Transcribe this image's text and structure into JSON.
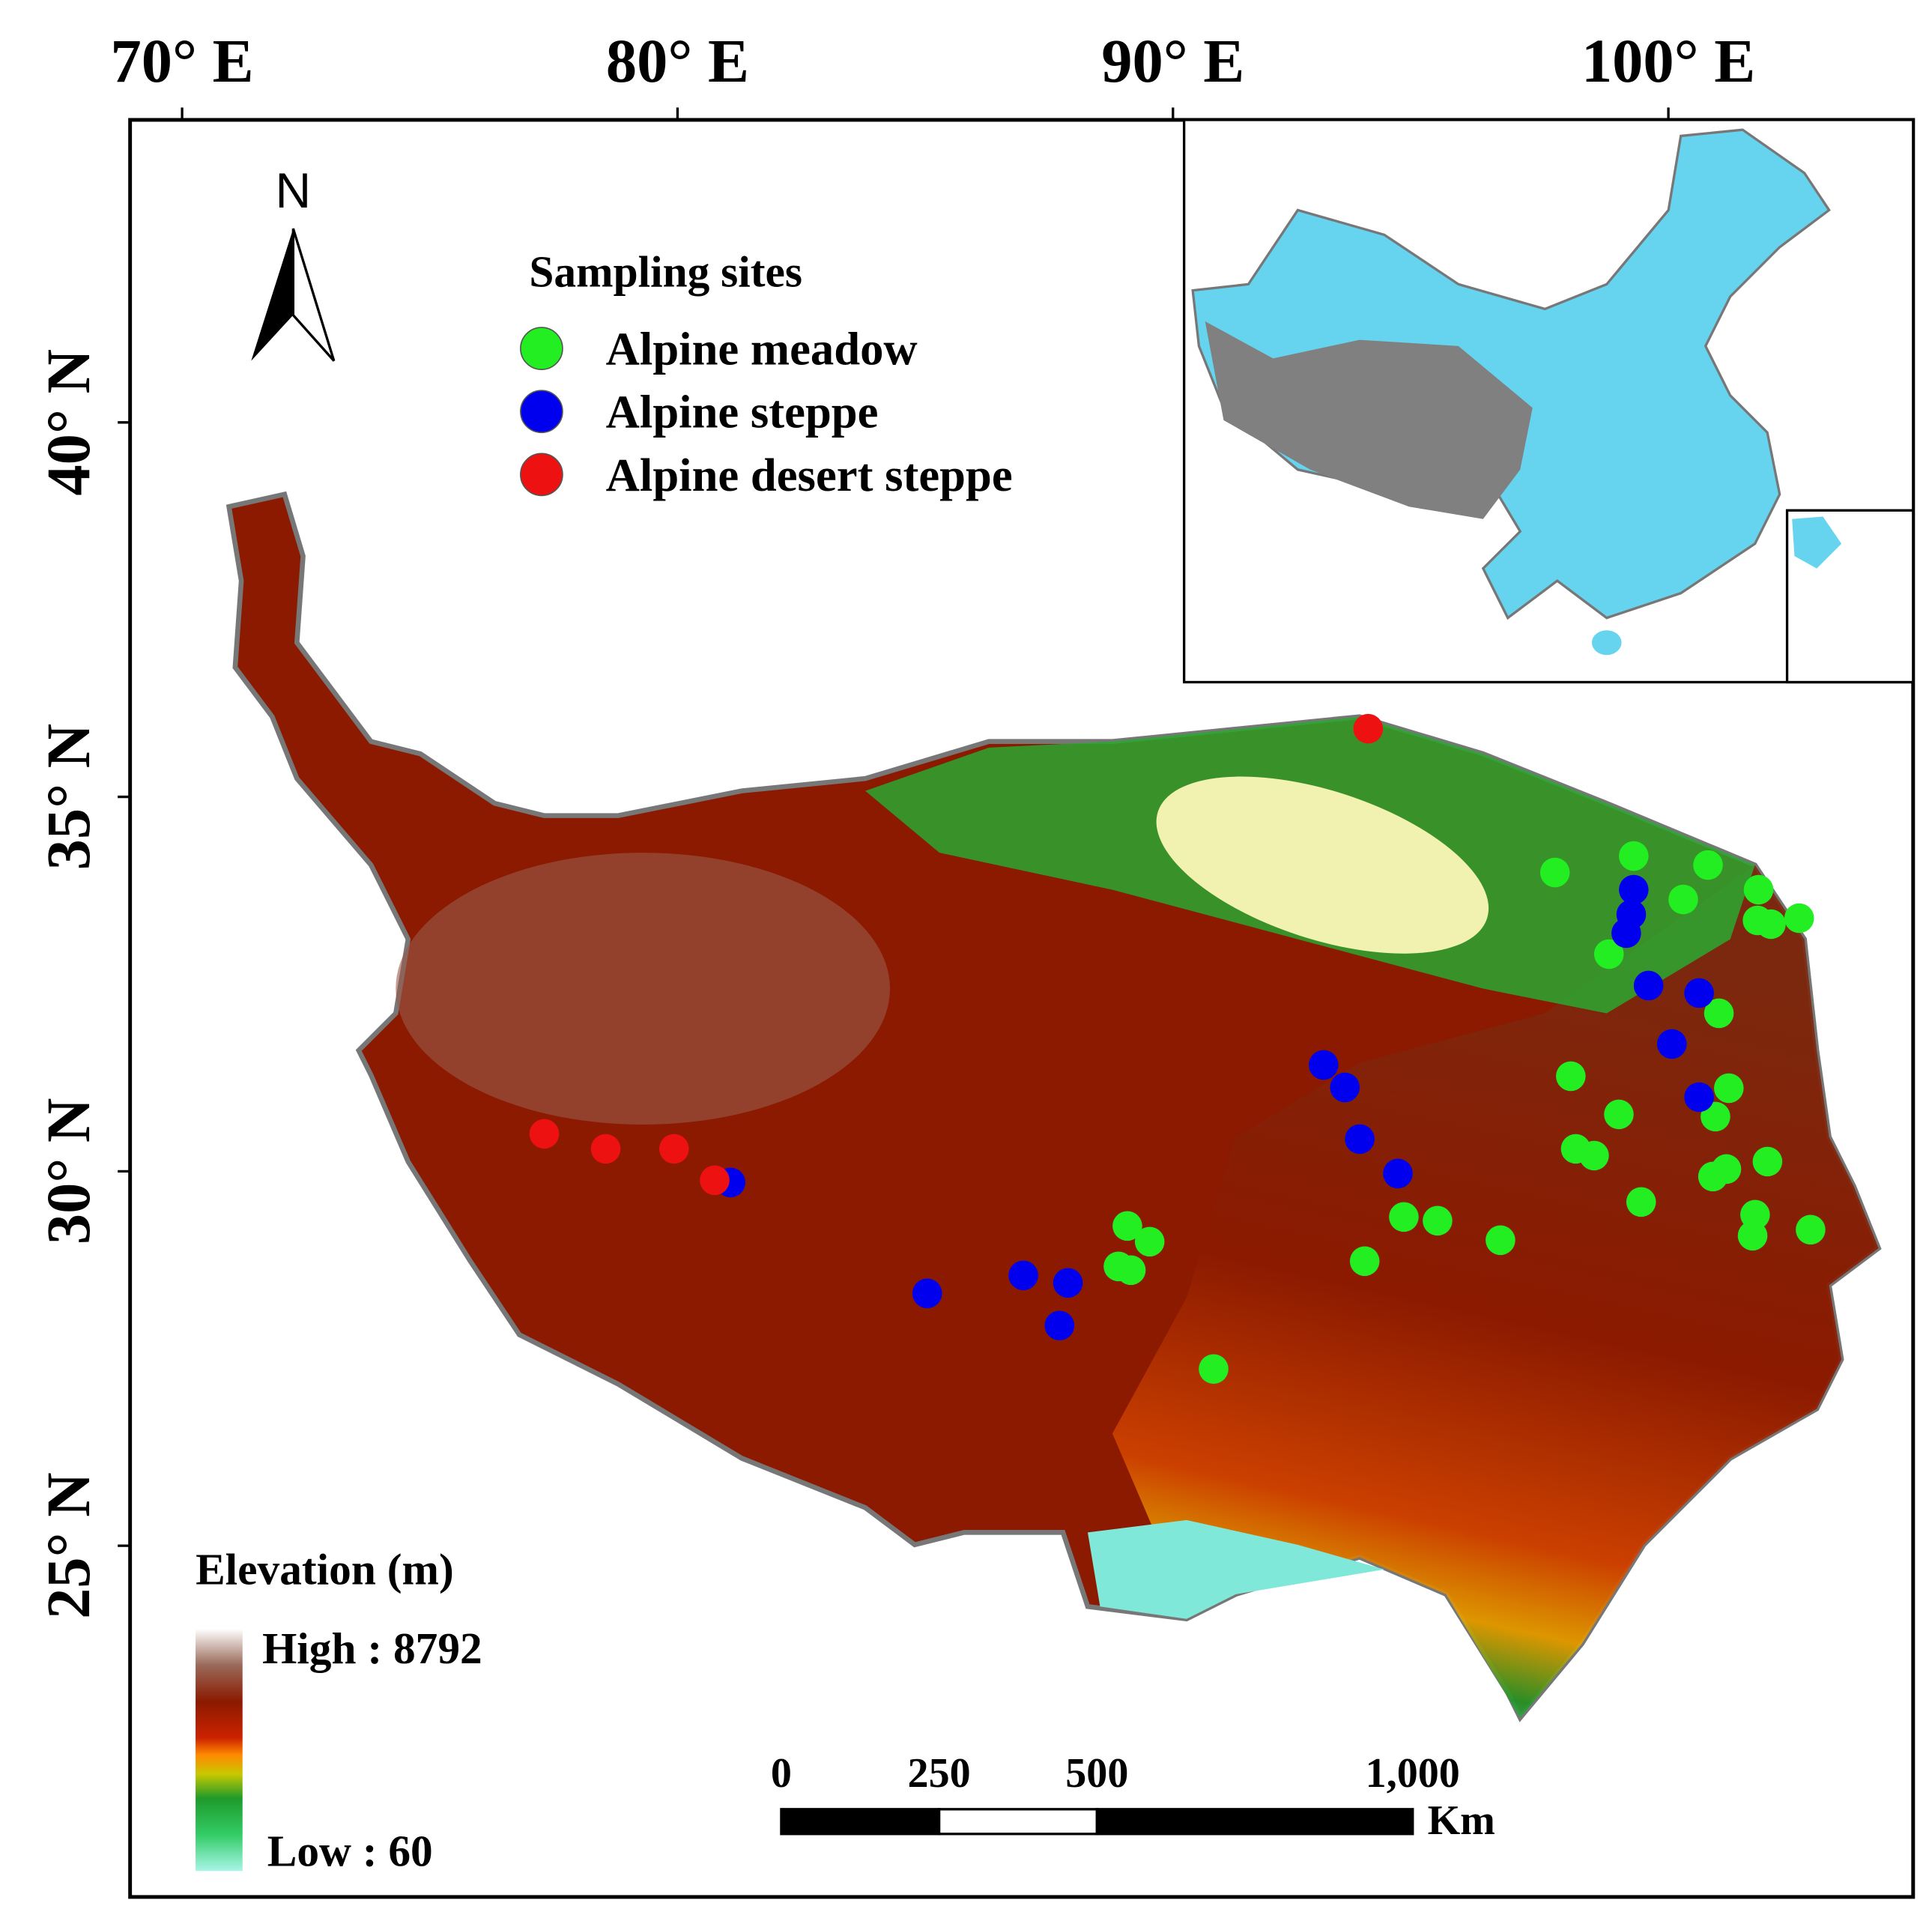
{
  "chart_data": {
    "type": "map",
    "xlim": [
      68.95,
      104.94
    ],
    "ylim": [
      20.31,
      44.04
    ],
    "xticks": [
      {
        "value": 70,
        "label": "70° E"
      },
      {
        "value": 80,
        "label": "80° E"
      },
      {
        "value": 90,
        "label": "90° E"
      },
      {
        "value": 100,
        "label": "100° E"
      }
    ],
    "yticks": [
      {
        "value": 40,
        "label": "40° N"
      },
      {
        "value": 35,
        "label": "35° N"
      },
      {
        "value": 30,
        "label": "30° N"
      },
      {
        "value": 25,
        "label": "25° N"
      }
    ],
    "north_label": "N",
    "legend_title": "Sampling sites",
    "series": [
      {
        "name": "Alpine meadow",
        "color": "#22ee22",
        "lon": [
          97.71,
          99.3,
          100.8,
          100.3,
          101.82,
          102.07,
          102.64,
          101.8,
          98.8,
          101.02,
          98.03,
          99.0,
          101.22,
          100.95,
          98.13,
          98.5,
          102.0,
          101.17,
          100.9,
          99.45,
          101.75,
          101.7,
          102.87,
          94.66,
          95.34,
          96.61,
          93.87,
          89.08,
          89.53,
          88.9,
          89.15,
          90.82
        ],
        "lat": [
          33.99,
          34.21,
          34.09,
          33.63,
          33.76,
          33.3,
          33.38,
          33.35,
          32.9,
          32.11,
          31.27,
          30.76,
          31.11,
          30.73,
          30.3,
          30.21,
          30.13,
          30.03,
          29.93,
          29.59,
          29.42,
          29.14,
          29.22,
          29.39,
          29.34,
          29.08,
          28.8,
          29.27,
          29.06,
          28.73,
          28.68,
          27.36
        ]
      },
      {
        "name": "Alpine steppe",
        "color": "#0000ee",
        "lon": [
          81.07,
          85.04,
          86.98,
          87.88,
          87.71,
          93.04,
          93.47,
          93.77,
          94.54,
          99.3,
          99.25,
          99.15,
          99.6,
          100.62,
          100.07,
          100.62
        ],
        "lat": [
          29.85,
          28.37,
          28.61,
          28.51,
          27.94,
          31.42,
          31.12,
          30.43,
          29.97,
          33.76,
          33.43,
          33.18,
          32.48,
          32.38,
          31.7,
          30.99
        ]
      },
      {
        "name": "Alpine desert steppe",
        "color": "#ee1111",
        "lon": [
          93.94,
          77.31,
          78.55,
          79.93,
          80.75
        ],
        "lat": [
          35.91,
          30.5,
          30.3,
          30.3,
          29.88
        ]
      }
    ],
    "elevation_legend": {
      "title": "Elevation (m)",
      "high": "High : 8792",
      "low": "Low : 60"
    },
    "scale_bar": {
      "ticks": [
        0,
        250,
        500,
        {
          "value": 1000,
          "label": "1,000"
        }
      ],
      "unit": "Km"
    }
  }
}
